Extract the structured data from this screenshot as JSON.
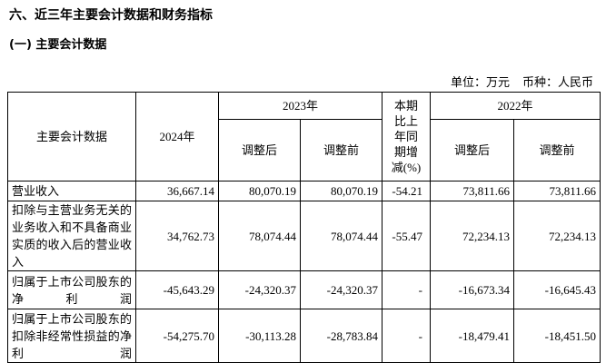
{
  "header": {
    "title": "六、近三年主要会计数据和财务指标",
    "subtitle": "(一) 主要会计数据",
    "unit": "单位：万元",
    "currency": "币种：人民币"
  },
  "table": {
    "columns": [
      "主要会计数据",
      "2024年",
      "2023年",
      "本期比上年同期增减(%)",
      "2022年"
    ],
    "subcolumns": [
      "调整后",
      "调整前",
      "调整后",
      "调整前"
    ],
    "rows": [
      [
        "营业收入",
        "36,667.14",
        "80,070.19",
        "80,070.19",
        "-54.21",
        "73,811.66",
        "73,811.66"
      ],
      [
        "扣除与主营业务无关的业务收入和不具备商业实质的收入后的营业收入",
        "34,762.73",
        "78,074.44",
        "78,074.44",
        "-55.47",
        "72,234.13",
        "72,234.13"
      ],
      [
        "归属于上市公司股东的净利润",
        "-45,643.29",
        "-24,320.37",
        "-24,320.37",
        "-",
        "-16,673.34",
        "-16,645.43"
      ],
      [
        "归属于上市公司股东的扣除非经常性损益的净利润",
        "-54,275.70",
        "-30,113.28",
        "-28,783.84",
        "-",
        "-18,479.41",
        "-18,451.50"
      ]
    ]
  }
}
